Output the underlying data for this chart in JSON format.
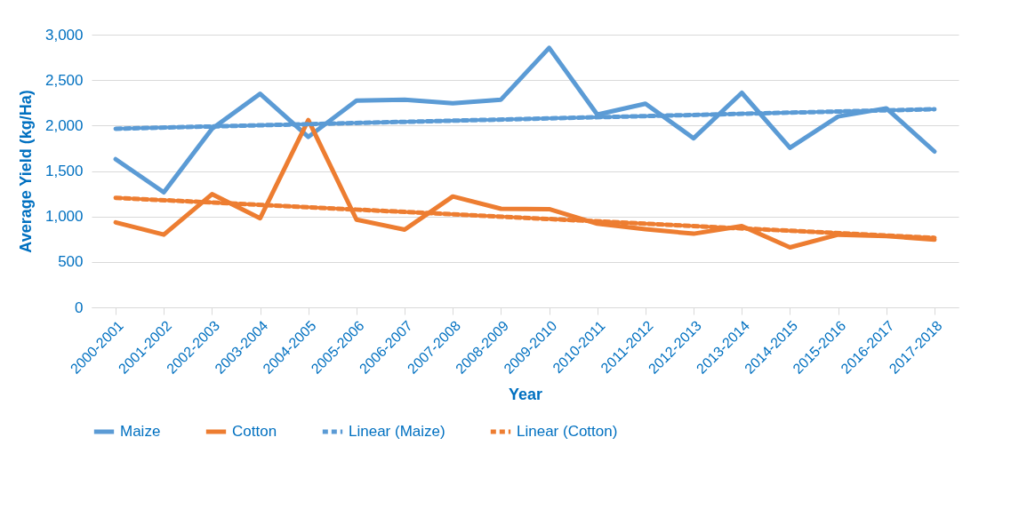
{
  "chart_data": {
    "type": "line",
    "xlabel": "Year",
    "ylabel": "Average Yield (kg/Ha)",
    "categories": [
      "2000-2001",
      "2001-2002",
      "2002-2003",
      "2003-2004",
      "2004-2005",
      "2005-2006",
      "2006-2007",
      "2007-2008",
      "2008-2009",
      "2009-2010",
      "2010-2011",
      "2011-2012",
      "2012-2013",
      "2013-2014",
      "2014-2015",
      "2015-2016",
      "2016-2017",
      "2017-2018"
    ],
    "series": [
      {
        "name": "Maize",
        "color": "#5b9bd5",
        "values": [
          1630,
          1265,
          1965,
          2350,
          1875,
          2275,
          2285,
          2245,
          2285,
          2855,
          2120,
          2240,
          1860,
          2360,
          1755,
          2100,
          2190,
          1715
        ]
      },
      {
        "name": "Cotton",
        "color": "#ed7d31",
        "values": [
          935,
          800,
          1245,
          980,
          2060,
          965,
          855,
          1220,
          1085,
          1080,
          920,
          860,
          810,
          895,
          660,
          800,
          785,
          745
        ]
      },
      {
        "name": "Linear (Maize)",
        "type": "line",
        "line_style": "dashed",
        "color": "#5b9bd5",
        "x": [
          "2000-2001",
          "2017-2018"
        ],
        "values": [
          1965,
          2180
        ]
      },
      {
        "name": "Linear (Cotton)",
        "type": "line",
        "line_style": "dashed",
        "color": "#ed7d31",
        "x": [
          "2000-2001",
          "2017-2018"
        ],
        "values": [
          1205,
          765
        ]
      }
    ],
    "ylim": [
      0,
      3000
    ],
    "yticks": [
      0,
      500,
      {
        "value": 1000,
        "label": "1,000"
      },
      {
        "value": 1500,
        "label": "1,500"
      },
      {
        "value": 2000,
        "label": "2,000"
      },
      {
        "value": 2500,
        "label": "2,500"
      },
      {
        "value": 3000,
        "label": "3,000"
      }
    ],
    "grid": "y",
    "legend": "bottom",
    "line_style": "solid"
  }
}
